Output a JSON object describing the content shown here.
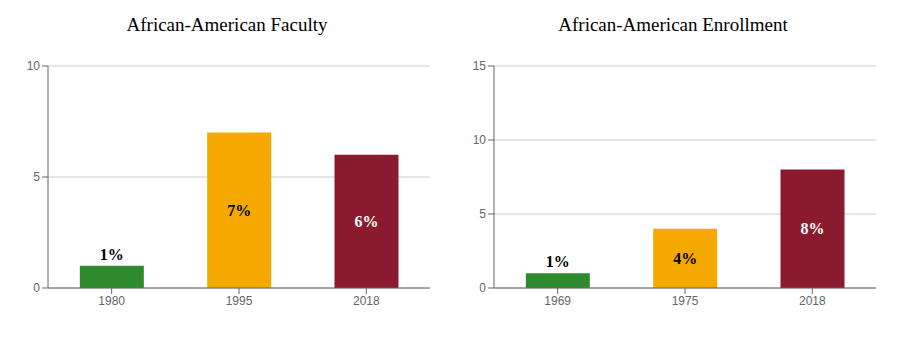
{
  "chart_data": [
    {
      "type": "bar",
      "title": "African-American Faculty",
      "categories": [
        "1980",
        "1995",
        "2018"
      ],
      "values": [
        1,
        7,
        6
      ],
      "value_labels": [
        "1%",
        "7%",
        "6%"
      ],
      "data_labels": true,
      "colors": [
        "#2e8b2e",
        "#f5a800",
        "#8b1a2e"
      ],
      "ylim": [
        0,
        10
      ],
      "yticks": [
        0,
        5,
        10
      ],
      "grid": true
    },
    {
      "type": "bar",
      "title": "African-American Enrollment",
      "categories": [
        "1969",
        "1975",
        "2018"
      ],
      "values": [
        1,
        4,
        8
      ],
      "value_labels": [
        "1%",
        "4%",
        "8%"
      ],
      "data_labels": true,
      "colors": [
        "#2e8b2e",
        "#f5a800",
        "#8b1a2e"
      ],
      "ylim": [
        0,
        15
      ],
      "yticks": [
        0,
        5,
        10,
        15
      ],
      "grid": true
    }
  ]
}
